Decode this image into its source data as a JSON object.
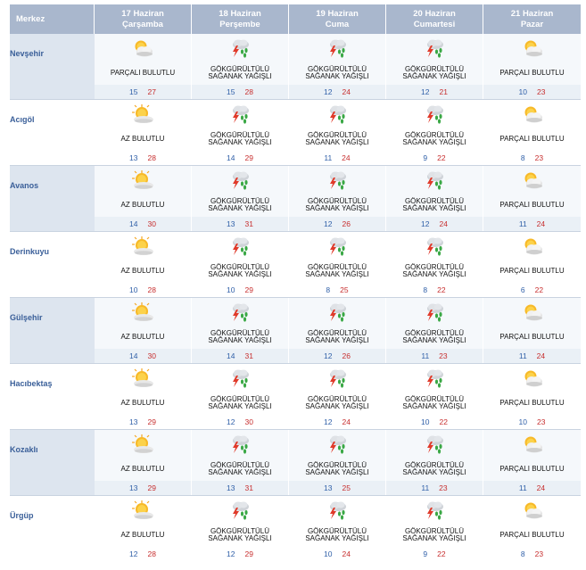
{
  "header": {
    "merkez_label": "Merkez",
    "days": [
      {
        "date": "17 Haziran",
        "weekday": "Çarşamba"
      },
      {
        "date": "18 Haziran",
        "weekday": "Perşembe"
      },
      {
        "date": "19 Haziran",
        "weekday": "Cuma"
      },
      {
        "date": "20 Haziran",
        "weekday": "Cumartesi"
      },
      {
        "date": "21 Haziran",
        "weekday": "Pazar"
      }
    ]
  },
  "colors": {
    "header_bg": "#a9b7cd",
    "city_text": "#3a5f99",
    "min_temp": "#2f5fa8",
    "max_temp": "#c72e2e"
  },
  "icons": {
    "partly": "partly-cloudy-icon",
    "few": "mostly-sunny-icon",
    "storm": "thunderstorm-rain-icon"
  },
  "rows": [
    {
      "city": "Nevşehir",
      "days": [
        {
          "icon": "partly",
          "desc": [
            "Parçalı Bulutlu"
          ],
          "min": "15",
          "max": "27"
        },
        {
          "icon": "storm",
          "desc": [
            "Gökgürültülü",
            "Sağanak Yağışlı"
          ],
          "min": "15",
          "max": "28"
        },
        {
          "icon": "storm",
          "desc": [
            "Gökgürültülü",
            "Sağanak Yağışlı"
          ],
          "min": "12",
          "max": "24"
        },
        {
          "icon": "storm",
          "desc": [
            "Gökgürültülü",
            "Sağanak Yağışlı"
          ],
          "min": "12",
          "max": "21"
        },
        {
          "icon": "partly",
          "desc": [
            "Parçalı Bulutlu"
          ],
          "min": "10",
          "max": "23"
        }
      ]
    },
    {
      "city": "Acıgöl",
      "days": [
        {
          "icon": "few",
          "desc": [
            "Az Bulutlu"
          ],
          "min": "13",
          "max": "28"
        },
        {
          "icon": "storm",
          "desc": [
            "Gökgürültülü",
            "Sağanak Yağışlı"
          ],
          "min": "14",
          "max": "29"
        },
        {
          "icon": "storm",
          "desc": [
            "Gökgürültülü",
            "Sağanak Yağışlı"
          ],
          "min": "11",
          "max": "24"
        },
        {
          "icon": "storm",
          "desc": [
            "Gökgürültülü",
            "Sağanak Yağışlı"
          ],
          "min": "9",
          "max": "22"
        },
        {
          "icon": "partly",
          "desc": [
            "Parçalı Bulutlu"
          ],
          "min": "8",
          "max": "23"
        }
      ]
    },
    {
      "city": "Avanos",
      "days": [
        {
          "icon": "few",
          "desc": [
            "Az Bulutlu"
          ],
          "min": "14",
          "max": "30"
        },
        {
          "icon": "storm",
          "desc": [
            "Gökgürültülü",
            "Sağanak Yağışlı"
          ],
          "min": "13",
          "max": "31"
        },
        {
          "icon": "storm",
          "desc": [
            "Gökgürültülü",
            "Sağanak Yağışlı"
          ],
          "min": "12",
          "max": "26"
        },
        {
          "icon": "storm",
          "desc": [
            "Gökgürültülü",
            "Sağanak Yağışlı"
          ],
          "min": "12",
          "max": "24"
        },
        {
          "icon": "partly",
          "desc": [
            "Parçalı Bulutlu"
          ],
          "min": "11",
          "max": "24"
        }
      ]
    },
    {
      "city": "Derinkuyu",
      "days": [
        {
          "icon": "few",
          "desc": [
            "Az Bulutlu"
          ],
          "min": "10",
          "max": "28"
        },
        {
          "icon": "storm",
          "desc": [
            "Gökgürültülü",
            "Sağanak Yağışlı"
          ],
          "min": "10",
          "max": "29"
        },
        {
          "icon": "storm",
          "desc": [
            "Gökgürültülü",
            "Sağanak Yağışlı"
          ],
          "min": "8",
          "max": "25"
        },
        {
          "icon": "storm",
          "desc": [
            "Gökgürültülü",
            "Sağanak Yağışlı"
          ],
          "min": "8",
          "max": "22"
        },
        {
          "icon": "partly",
          "desc": [
            "Parçalı Bulutlu"
          ],
          "min": "6",
          "max": "22"
        }
      ]
    },
    {
      "city": "Gülşehir",
      "days": [
        {
          "icon": "few",
          "desc": [
            "Az Bulutlu"
          ],
          "min": "14",
          "max": "30"
        },
        {
          "icon": "storm",
          "desc": [
            "Gökgürültülü",
            "Sağanak Yağışlı"
          ],
          "min": "14",
          "max": "31"
        },
        {
          "icon": "storm",
          "desc": [
            "Gökgürültülü",
            "Sağanak Yağışlı"
          ],
          "min": "12",
          "max": "26"
        },
        {
          "icon": "storm",
          "desc": [
            "Gökgürültülü",
            "Sağanak Yağışlı"
          ],
          "min": "11",
          "max": "23"
        },
        {
          "icon": "partly",
          "desc": [
            "Parçalı Bulutlu"
          ],
          "min": "11",
          "max": "24"
        }
      ]
    },
    {
      "city": "Hacıbektaş",
      "days": [
        {
          "icon": "few",
          "desc": [
            "Az Bulutlu"
          ],
          "min": "13",
          "max": "29"
        },
        {
          "icon": "storm",
          "desc": [
            "Gökgürültülü",
            "Sağanak Yağışlı"
          ],
          "min": "12",
          "max": "30"
        },
        {
          "icon": "storm",
          "desc": [
            "Gökgürültülü",
            "Sağanak Yağışlı"
          ],
          "min": "12",
          "max": "24"
        },
        {
          "icon": "storm",
          "desc": [
            "Gökgürültülü",
            "Sağanak Yağışlı"
          ],
          "min": "10",
          "max": "22"
        },
        {
          "icon": "partly",
          "desc": [
            "Parçalı Bulutlu"
          ],
          "min": "10",
          "max": "23"
        }
      ]
    },
    {
      "city": "Kozaklı",
      "days": [
        {
          "icon": "few",
          "desc": [
            "Az Bulutlu"
          ],
          "min": "13",
          "max": "29"
        },
        {
          "icon": "storm",
          "desc": [
            "Gökgürültülü",
            "Sağanak Yağışlı"
          ],
          "min": "13",
          "max": "31"
        },
        {
          "icon": "storm",
          "desc": [
            "Gökgürültülü",
            "Sağanak Yağışlı"
          ],
          "min": "13",
          "max": "25"
        },
        {
          "icon": "storm",
          "desc": [
            "Gökgürültülü",
            "Sağanak Yağışlı"
          ],
          "min": "11",
          "max": "23"
        },
        {
          "icon": "partly",
          "desc": [
            "Parçalı Bulutlu"
          ],
          "min": "11",
          "max": "24"
        }
      ]
    },
    {
      "city": "Ürgüp",
      "days": [
        {
          "icon": "few",
          "desc": [
            "Az Bulutlu"
          ],
          "min": "12",
          "max": "28"
        },
        {
          "icon": "storm",
          "desc": [
            "Gökgürültülü",
            "Sağanak Yağışlı"
          ],
          "min": "12",
          "max": "29"
        },
        {
          "icon": "storm",
          "desc": [
            "Gökgürültülü",
            "Sağanak Yağışlı"
          ],
          "min": "10",
          "max": "24"
        },
        {
          "icon": "storm",
          "desc": [
            "Gökgürültülü",
            "Sağanak Yağışlı"
          ],
          "min": "9",
          "max": "22"
        },
        {
          "icon": "partly",
          "desc": [
            "Parçalı Bulutlu"
          ],
          "min": "8",
          "max": "23"
        }
      ]
    }
  ]
}
